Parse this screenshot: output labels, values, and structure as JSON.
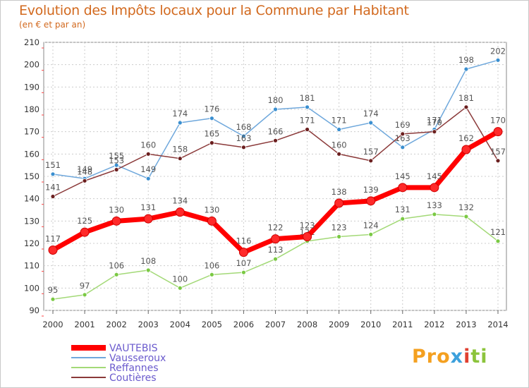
{
  "header": {
    "title": "Evolution des Impôts locaux pour la Commune par Habitant",
    "subtitle": "(en € et par an)"
  },
  "logo": {
    "parts": [
      "Pro",
      "x",
      "i",
      "ti"
    ],
    "colors": [
      "#f4a020",
      "#3ca0dc",
      "#e04030",
      "#8cc43c"
    ]
  },
  "chart_data": {
    "type": "line",
    "title": "Evolution des Impôts locaux pour la Commune par Habitant",
    "subtitle": "(en € et par an)",
    "xlabel": "",
    "ylabel": "",
    "categories": [
      "2000",
      "2001",
      "2002",
      "2003",
      "2004",
      "2005",
      "2006",
      "2007",
      "2008",
      "2009",
      "2010",
      "2011",
      "2012",
      "2013",
      "2014"
    ],
    "ylim": [
      90,
      210
    ],
    "yticks": [
      90,
      100,
      110,
      120,
      130,
      140,
      150,
      160,
      170,
      180,
      190,
      200,
      210
    ],
    "grid": true,
    "legend_position": "bottom-left",
    "series": [
      {
        "name": "VAUTEBIS",
        "color": "#ff0000",
        "marker": "#ee1111",
        "bold": true,
        "values": [
          117,
          125,
          130,
          131,
          134,
          130,
          116,
          122,
          123,
          138,
          139,
          145,
          145,
          162,
          170
        ]
      },
      {
        "name": "Vausseroux",
        "color": "#6fa8dc",
        "marker": "#3a8fd0",
        "bold": false,
        "values": [
          151,
          149,
          155,
          149,
          174,
          176,
          168,
          180,
          181,
          171,
          174,
          163,
          171,
          198,
          202
        ]
      },
      {
        "name": "Reffannes",
        "color": "#a3d977",
        "marker": "#7ac943",
        "bold": false,
        "values": [
          95,
          97,
          106,
          108,
          100,
          106,
          107,
          113,
          121,
          123,
          124,
          131,
          133,
          132,
          121
        ]
      },
      {
        "name": "Coutières",
        "color": "#8b3a3a",
        "marker": "#6b1f1f",
        "bold": false,
        "values": [
          141,
          148,
          153,
          160,
          158,
          165,
          163,
          166,
          171,
          160,
          157,
          169,
          170,
          181,
          157
        ]
      }
    ]
  }
}
